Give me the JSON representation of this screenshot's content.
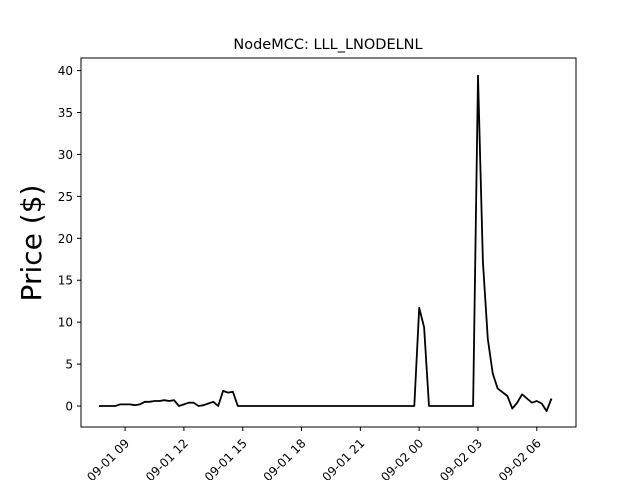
{
  "chart_data": {
    "type": "line",
    "title": "NodeMCC: LLL_LNODELNL",
    "xlabel": "",
    "ylabel": "Price ($)",
    "x_unit": "datetime",
    "x_ticks": [
      "09-01 09",
      "09-01 12",
      "09-01 15",
      "09-01 18",
      "09-01 21",
      "09-02 00",
      "09-02 03",
      "09-02 06"
    ],
    "x_tick_values": [
      "09-01 09:00",
      "09-01 12:00",
      "09-01 15:00",
      "09-01 18:00",
      "09-01 21:00",
      "09-02 00:00",
      "09-02 03:00",
      "09-02 06:00"
    ],
    "xlim": [
      "09-01 06:45",
      "09-02 08:00"
    ],
    "ylim": [
      -2.5,
      41.5
    ],
    "y_ticks": [
      0,
      5,
      10,
      15,
      20,
      25,
      30,
      35,
      40
    ],
    "grid": false,
    "series": [
      {
        "color": "#000000",
        "x": [
          "09-01 07:40",
          "09-01 08:00",
          "09-01 08:15",
          "09-01 08:30",
          "09-01 08:45",
          "09-01 09:00",
          "09-01 09:15",
          "09-01 09:30",
          "09-01 09:45",
          "09-01 10:00",
          "09-01 10:15",
          "09-01 10:30",
          "09-01 10:45",
          "09-01 11:00",
          "09-01 11:15",
          "09-01 11:30",
          "09-01 11:45",
          "09-01 12:00",
          "09-01 12:15",
          "09-01 12:30",
          "09-01 12:45",
          "09-01 13:00",
          "09-01 13:15",
          "09-01 13:30",
          "09-01 13:45",
          "09-01 14:00",
          "09-01 14:15",
          "09-01 14:30",
          "09-01 14:45",
          "09-01 15:00",
          "09-01 16:00",
          "09-01 18:00",
          "09-01 21:00",
          "09-01 23:45",
          "09-02 00:00",
          "09-02 00:15",
          "09-02 00:30",
          "09-02 01:00",
          "09-02 02:00",
          "09-02 02:45",
          "09-02 03:00",
          "09-02 03:15",
          "09-02 03:30",
          "09-02 03:45",
          "09-02 04:00",
          "09-02 04:30",
          "09-02 04:45",
          "09-02 05:00",
          "09-02 05:15",
          "09-02 05:30",
          "09-02 05:45",
          "09-02 06:00",
          "09-02 06:15",
          "09-02 06:30",
          "09-02 06:45"
        ],
        "y": [
          0,
          0,
          0,
          0,
          0.2,
          0.2,
          0.2,
          0.1,
          0.2,
          0.5,
          0.5,
          0.6,
          0.6,
          0.7,
          0.6,
          0.7,
          0,
          0.2,
          0.4,
          0.4,
          0,
          0.1,
          0.3,
          0.5,
          0,
          1.8,
          1.6,
          1.7,
          0,
          0,
          0,
          0,
          0,
          0,
          11.7,
          9.4,
          0,
          0,
          0,
          0,
          39.4,
          17.2,
          8,
          3.9,
          2.1,
          1.2,
          -0.3,
          0.4,
          1.4,
          0.9,
          0.4,
          0.6,
          0.3,
          -0.6,
          0.9
        ]
      }
    ]
  }
}
